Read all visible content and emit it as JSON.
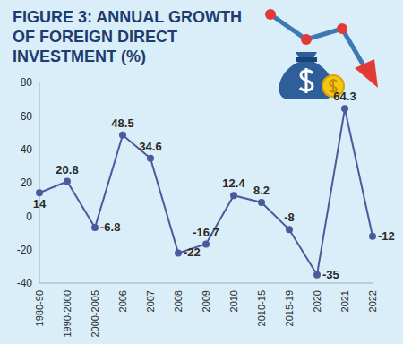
{
  "chart_data": {
    "type": "line",
    "title": "FIGURE 3: ANNUAL GROWTH OF FOREIGN DIRECT INVESTMENT (%)",
    "categories": [
      "1980-90",
      "1990-2000",
      "2000-2005",
      "2006",
      "2007",
      "2008",
      "2009",
      "2010",
      "2010-15",
      "2015-19",
      "2020",
      "2021",
      "2022"
    ],
    "values": [
      14,
      20.8,
      -6.8,
      48.5,
      34.6,
      -22,
      -16.7,
      12.4,
      8.2,
      -8,
      -35,
      64.3,
      -12
    ],
    "color": "#4a5a9c",
    "ylim": [
      -40,
      80
    ],
    "yticks": [
      -40,
      -20,
      0,
      20,
      40,
      60,
      80
    ],
    "grid": false,
    "data_labels": true,
    "marker": "circle"
  }
}
